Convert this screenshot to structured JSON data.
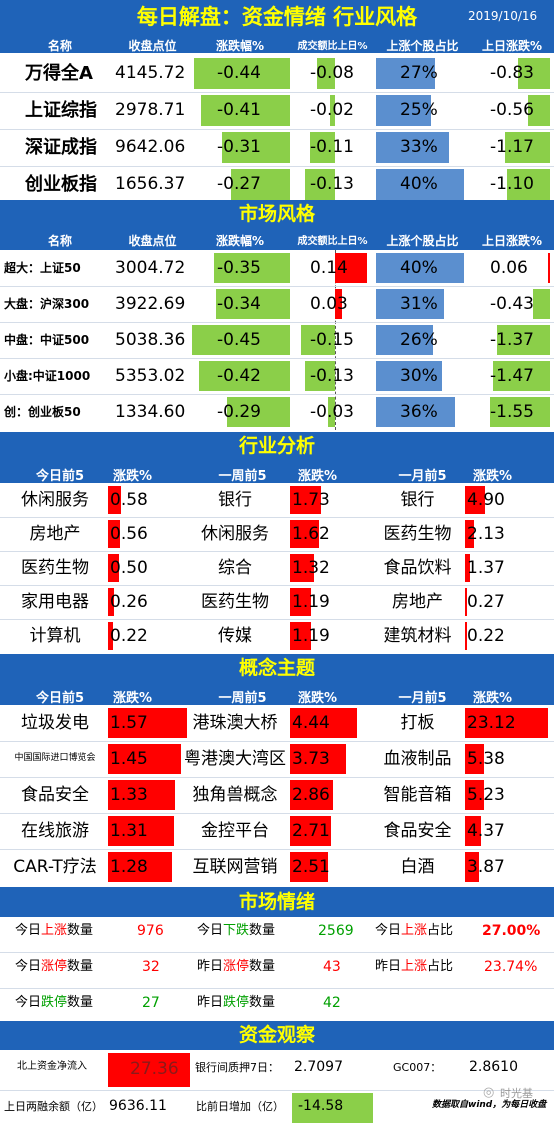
{
  "title": "每日解盘：资金情绪 行业风格",
  "date": "2019/10/16",
  "indices": {
    "headers": [
      "名称",
      "收盘点位",
      "涨跌幅%",
      "成交额比上日%",
      "上涨个股占比",
      "上日涨跌%"
    ],
    "rows": [
      {
        "name": "万得全A",
        "close": "4145.72",
        "chg": "-0.44",
        "vol": "-0.08",
        "up": "27%",
        "prev": "-0.83"
      },
      {
        "name": "上证综指",
        "close": "2978.71",
        "chg": "-0.41",
        "vol": "-0.02",
        "up": "25%",
        "prev": "-0.56"
      },
      {
        "name": "深证成指",
        "close": "9642.06",
        "chg": "-0.31",
        "vol": "-0.11",
        "up": "33%",
        "prev": "-1.17"
      },
      {
        "name": "创业板指",
        "close": "1656.37",
        "chg": "-0.27",
        "vol": "-0.13",
        "up": "40%",
        "prev": "-1.10"
      }
    ]
  },
  "style": {
    "title": "市场风格",
    "headers": [
      "名称",
      "收盘点位",
      "涨跌幅%",
      "成交额比上日%",
      "上涨个股占比",
      "上日涨跌%"
    ],
    "rows": [
      {
        "name": "超大：上证50",
        "close": "3004.72",
        "chg": "-0.35",
        "vol": "0.14",
        "up": "40%",
        "prev": "0.06"
      },
      {
        "name": "大盘：沪深300",
        "close": "3922.69",
        "chg": "-0.34",
        "vol": "0.03",
        "up": "31%",
        "prev": "-0.43"
      },
      {
        "name": "中盘：中证500",
        "close": "5038.36",
        "chg": "-0.45",
        "vol": "-0.15",
        "up": "26%",
        "prev": "-1.37"
      },
      {
        "name": "小盘:中证1000",
        "close": "5353.02",
        "chg": "-0.42",
        "vol": "-0.13",
        "up": "30%",
        "prev": "-1.47"
      },
      {
        "name": "创：创业板50",
        "close": "1334.60",
        "chg": "-0.29",
        "vol": "-0.03",
        "up": "36%",
        "prev": "-1.55"
      }
    ]
  },
  "industry": {
    "title": "行业分析",
    "headers": [
      "今日前5",
      "涨跌%",
      "一周前5",
      "涨跌%",
      "一月前5",
      "涨跌%"
    ],
    "rows": [
      [
        "休闲服务",
        "0.58",
        "银行",
        "1.73",
        "银行",
        "4.90"
      ],
      [
        "房地产",
        "0.56",
        "休闲服务",
        "1.62",
        "医药生物",
        "2.13"
      ],
      [
        "医药生物",
        "0.50",
        "综合",
        "1.32",
        "食品饮料",
        "1.37"
      ],
      [
        "家用电器",
        "0.26",
        "医药生物",
        "1.19",
        "房地产",
        "0.27"
      ],
      [
        "计算机",
        "0.22",
        "传媒",
        "1.19",
        "建筑材料",
        "0.22"
      ]
    ]
  },
  "concept": {
    "title": "概念主题",
    "headers": [
      "今日前5",
      "涨跌%",
      "一周前5",
      "涨跌%",
      "一月前5",
      "涨跌%"
    ],
    "rows": [
      [
        "垃圾发电",
        "1.57",
        "港珠澳大桥",
        "4.44",
        "打板",
        "23.12"
      ],
      [
        "中国国际进口博览会",
        "1.45",
        "粤港澳大湾区",
        "3.73",
        "血液制品",
        "5.38"
      ],
      [
        "食品安全",
        "1.33",
        "独角兽概念",
        "2.86",
        "智能音箱",
        "5.23"
      ],
      [
        "在线旅游",
        "1.31",
        "金控平台",
        "2.71",
        "食品安全",
        "4.37"
      ],
      [
        "CAR-T疗法",
        "1.28",
        "互联网营销",
        "2.51",
        "白酒",
        "3.87"
      ]
    ]
  },
  "emotion": {
    "title": "市场情绪",
    "items": [
      {
        "pre": "今日",
        "key": "上涨",
        "post": "数量",
        "kcolor": "#ff0000",
        "value": "976",
        "vcolor": "#ff0000"
      },
      {
        "pre": "今日",
        "key": "下跌",
        "post": "数量",
        "kcolor": "#00a000",
        "value": "2569",
        "vcolor": "#00a000"
      },
      {
        "pre": "今日",
        "key": "上涨",
        "post": "占比",
        "kcolor": "#ff0000",
        "value": "27.00%",
        "vcolor": "#ff0000"
      },
      {
        "pre": "今日",
        "key": "涨停",
        "post": "数量",
        "kcolor": "#ff0000",
        "value": "32",
        "vcolor": "#ff0000"
      },
      {
        "pre": "昨日",
        "key": "涨停",
        "post": "数量",
        "kcolor": "#ff0000",
        "value": "43",
        "vcolor": "#ff0000"
      },
      {
        "pre": "昨日",
        "key": "上涨",
        "post": "占比",
        "kcolor": "#ff0000",
        "value": "23.74%",
        "vcolor": "#ff0000"
      },
      {
        "pre": "今日",
        "key": "跌停",
        "post": "数量",
        "kcolor": "#00a000",
        "value": "27",
        "vcolor": "#00a000"
      },
      {
        "pre": "昨日",
        "key": "跌停",
        "post": "数量",
        "kcolor": "#00a000",
        "value": "42",
        "vcolor": "#00a000"
      }
    ]
  },
  "fund": {
    "title": "资金观察",
    "north_label": "北上资金净流入",
    "north_value": "27.36",
    "repo_label": "银行间质押7日：",
    "repo_value": "2.7097",
    "gc_label": "GC007：",
    "gc_value": "2.8610",
    "margin_label": "上日两融余额（亿）",
    "margin_value": "9636.11",
    "increase_label": "比前日增加（亿）",
    "increase_value": "-14.58",
    "source": "数据取自wind，为每日收盘",
    "watermark": "时光基"
  }
}
